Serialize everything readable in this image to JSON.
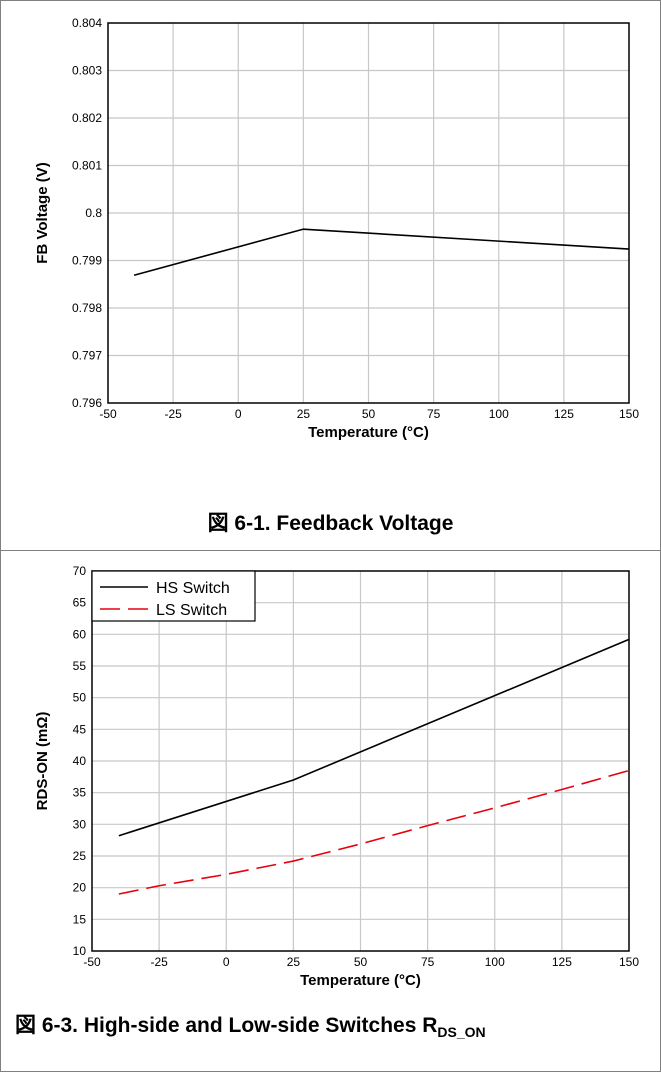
{
  "chart_data": [
    {
      "type": "line",
      "caption": "図 6-1. Feedback Voltage",
      "xlabel": "Temperature (°C)",
      "ylabel": "FB Voltage (V)",
      "xlim": [
        -50,
        150
      ],
      "ylim": [
        0.796,
        0.804
      ],
      "xticks": [
        -50,
        -25,
        0,
        25,
        50,
        75,
        100,
        125,
        150
      ],
      "yticks": [
        0.796,
        0.797,
        0.798,
        0.799,
        0.8,
        0.801,
        0.802,
        0.803,
        0.804
      ],
      "xtick_labels": [
        "-50",
        "-25",
        "0",
        "25",
        "50",
        "75",
        "100",
        "125",
        "150"
      ],
      "ytick_labels": [
        "0.796",
        "0.797",
        "0.798",
        "0.799",
        "0.8",
        "0.801",
        "0.802",
        "0.803",
        "0.804"
      ],
      "grid": true,
      "series": [
        {
          "color": "#000000",
          "dash": "solid",
          "x": [
            -40,
            25,
            150
          ],
          "y": [
            0.79869,
            0.79966,
            0.79924
          ]
        }
      ]
    },
    {
      "type": "line",
      "caption_main": "図 6-3. High-side and Low-side Switches R",
      "caption_sub": "DS_ON",
      "xlabel": "Temperature (°C)",
      "ylabel": "RDS-ON (mΩ)",
      "xlim": [
        -50,
        150
      ],
      "ylim": [
        10,
        70
      ],
      "xticks": [
        -50,
        -25,
        0,
        25,
        50,
        75,
        100,
        125,
        150
      ],
      "yticks": [
        10,
        15,
        20,
        25,
        30,
        35,
        40,
        45,
        50,
        55,
        60,
        65,
        70
      ],
      "xtick_labels": [
        "-50",
        "-25",
        "0",
        "25",
        "50",
        "75",
        "100",
        "125",
        "150"
      ],
      "ytick_labels": [
        "10",
        "15",
        "20",
        "25",
        "30",
        "35",
        "40",
        "45",
        "50",
        "55",
        "60",
        "65",
        "70"
      ],
      "grid": true,
      "legend": "top-left",
      "series": [
        {
          "name": "HS Switch",
          "color": "#000000",
          "dash": "solid",
          "x": [
            -40,
            25,
            150
          ],
          "y": [
            28.2,
            37,
            59.2
          ]
        },
        {
          "name": "LS Switch",
          "color": "#e8000d",
          "dash": "dashed",
          "x": [
            -40,
            -25,
            0,
            25,
            50,
            75,
            100,
            125,
            150
          ],
          "y": [
            19,
            20.3,
            22.1,
            24.2,
            26.9,
            29.8,
            32.6,
            35.5,
            38.5
          ]
        }
      ]
    }
  ]
}
